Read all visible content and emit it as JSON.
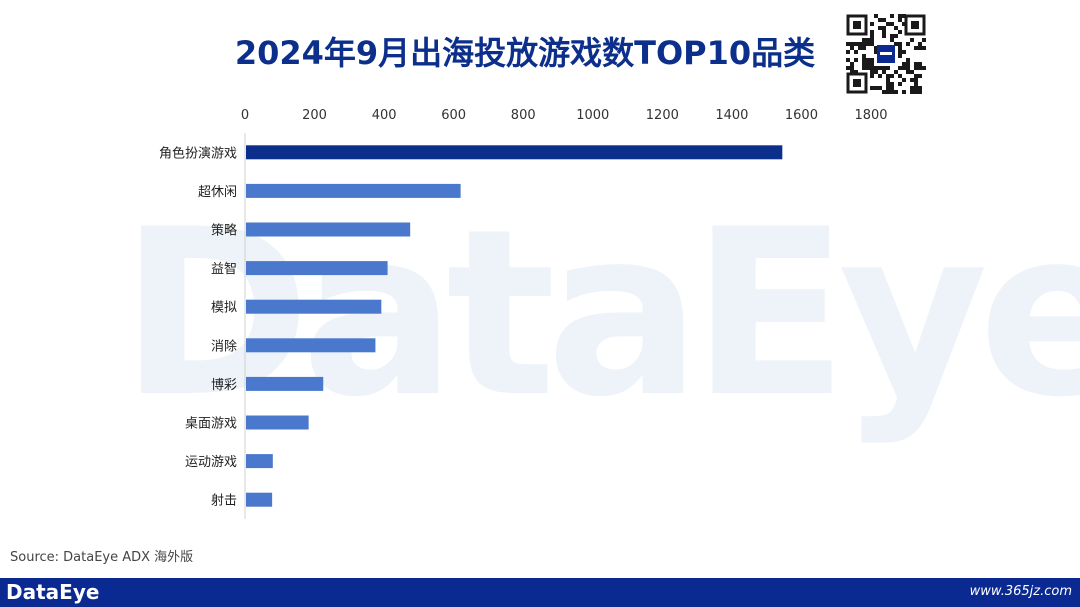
{
  "title": "2024年9月出海投放游戏数TOP10品类",
  "source": "Source: DataEye ADX 海外版",
  "footer": {
    "logo": "DataEye",
    "url": "www.365jz.com"
  },
  "watermark": "DataEye",
  "colors": {
    "top_bar": "#0d2f8c",
    "bar": "#4a78cd",
    "title": "#0d2f8c",
    "footer": "#0a2a92"
  },
  "chart_data": {
    "type": "bar",
    "orientation": "horizontal",
    "categories": [
      "角色扮演游戏",
      "超休闲",
      "策略",
      "益智",
      "模拟",
      "消除",
      "博彩",
      "桌面游戏",
      "运动游戏",
      "射击"
    ],
    "values": [
      1545,
      620,
      475,
      410,
      392,
      375,
      225,
      183,
      80,
      78
    ],
    "xlim": [
      0,
      1800
    ],
    "xticks": [
      "0",
      "200",
      "400",
      "600",
      "800",
      "1000",
      "1200",
      "1400",
      "1600",
      "1800"
    ],
    "axis_position": "top",
    "grid": false,
    "legend": "none"
  }
}
